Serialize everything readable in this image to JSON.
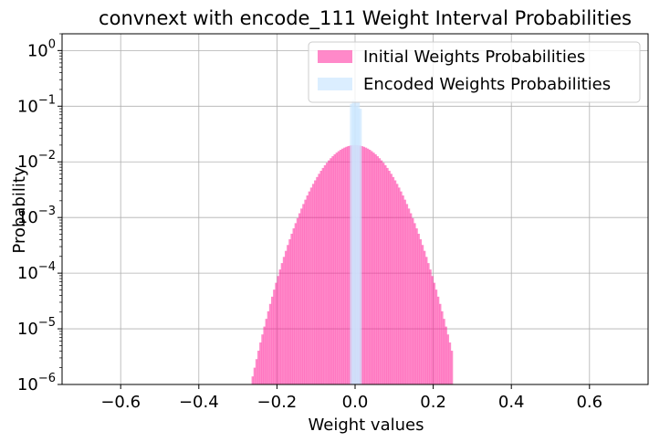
{
  "chart_data": {
    "type": "bar",
    "title": "convnext with encode_111 Weight Interval Probabilities",
    "xlabel": "Weight values",
    "ylabel": "Probability",
    "xlim": [
      -0.75,
      0.75
    ],
    "ylim": [
      1e-06,
      2
    ],
    "yscale": "log",
    "grid": true,
    "legend_position": "top-right",
    "x_ticks": [
      -0.6,
      -0.4,
      -0.2,
      0.0,
      0.2,
      0.4,
      0.6
    ],
    "x_tick_labels": [
      "−0.6",
      "−0.4",
      "−0.2",
      "0.0",
      "0.2",
      "0.4",
      "0.6"
    ],
    "y_ticks": [
      {
        "value": 1,
        "base": "10",
        "exp": "0"
      },
      {
        "value": 0.1,
        "base": "10",
        "exp": "−1"
      },
      {
        "value": 0.01,
        "base": "10",
        "exp": "−2"
      },
      {
        "value": 0.001,
        "base": "10",
        "exp": "−3"
      },
      {
        "value": 0.0001,
        "base": "10",
        "exp": "−4"
      },
      {
        "value": 1e-05,
        "base": "10",
        "exp": "−5"
      },
      {
        "value": 1e-06,
        "base": "10",
        "exp": "−6"
      }
    ],
    "series": [
      {
        "name": "Initial Weights Probabilities",
        "color": "#ff1493",
        "opacity": 0.5,
        "distribution": {
          "peak": 0.02,
          "peak_at": 0.0,
          "center": 0.0,
          "sigma": 0.06,
          "x_min": -0.275,
          "x_max": 0.25,
          "bin_width": 0.005
        }
      },
      {
        "name": "Encoded Weights Probabilities",
        "color": "#cce7ff",
        "opacity": 0.7,
        "values": [
          {
            "x": -0.008,
            "y": 0.11
          },
          {
            "x": -0.003,
            "y": 0.13
          },
          {
            "x": 0.002,
            "y": 0.1
          },
          {
            "x": 0.007,
            "y": 0.12
          },
          {
            "x": 0.012,
            "y": 0.09
          }
        ]
      }
    ]
  }
}
